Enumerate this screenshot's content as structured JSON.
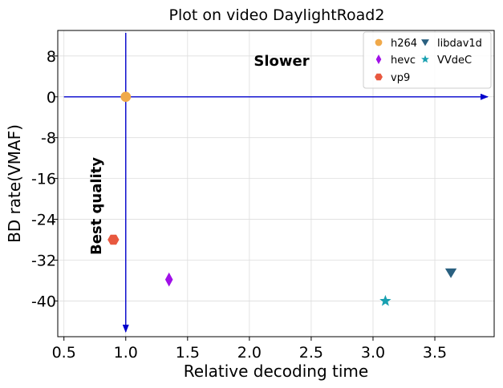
{
  "chart_data": {
    "type": "scatter",
    "title": "Plot on video DaylightRoad2",
    "xlabel": "Relative decoding time",
    "ylabel": "BD rate(VMAF)",
    "xlim": [
      0.45,
      3.98
    ],
    "ylim": [
      -47,
      13
    ],
    "xticks": [
      0.5,
      1.0,
      1.5,
      2.0,
      2.5,
      3.0,
      3.5
    ],
    "xtick_labels": [
      "0.5",
      "1.0",
      "1.5",
      "2.0",
      "2.5",
      "3.0",
      "3.5"
    ],
    "yticks": [
      8,
      0,
      -8,
      -16,
      -24,
      -32,
      -40
    ],
    "ytick_labels": [
      "8",
      "0",
      "-8",
      "-16",
      "-24",
      "-32",
      "-40"
    ],
    "grid": true,
    "legend_position": "top-right",
    "series": [
      {
        "name": "h264",
        "marker": "circle",
        "color": "#f0a94a",
        "x": 1.0,
        "y": 0.0
      },
      {
        "name": "hevc",
        "marker": "thin-diamond",
        "color": "#a010e8",
        "x": 1.35,
        "y": -35.8
      },
      {
        "name": "vp9",
        "marker": "hexagon",
        "color": "#e8583f",
        "x": 0.9,
        "y": -28.0
      },
      {
        "name": "libdav1d",
        "marker": "triangle-down",
        "color": "#2a6080",
        "x": 3.63,
        "y": -34.5
      },
      {
        "name": "VVdeC",
        "marker": "star",
        "color": "#18a0b0",
        "x": 3.1,
        "y": -40.0
      }
    ],
    "annotations": {
      "slower": "Slower",
      "best_quality": "Best quality"
    },
    "arrow_color": "#0000cc"
  }
}
